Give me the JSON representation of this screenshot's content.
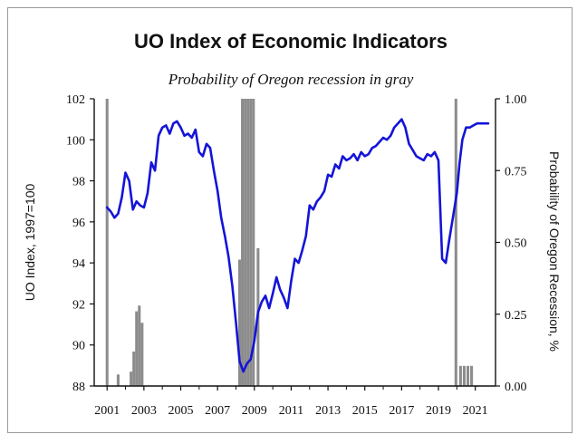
{
  "chart_data": {
    "type": "line",
    "title": "UO Index of Economic Indicators",
    "subtitle": "Probability of Oregon recession in gray",
    "ylabel": "UO Index, 1997=100",
    "ylabel_right": "Probability of Oregon Recession, %",
    "ylim": [
      88,
      102
    ],
    "ylim_right": [
      0,
      1
    ],
    "xlim": [
      2000.3,
      2022.1
    ],
    "yticks": [
      "88",
      "90",
      "92",
      "94",
      "96",
      "98",
      "100",
      "102"
    ],
    "yticks_right": [
      "0.00",
      "0.25",
      "0.50",
      "0.75",
      "1.00"
    ],
    "xticks": [
      "2001",
      "2003",
      "2005",
      "2007",
      "2009",
      "2011",
      "2013",
      "2015",
      "2017",
      "2019",
      "2021"
    ],
    "series": [
      {
        "color": "#1414d8",
        "x": [
          2001.0,
          2001.2,
          2001.4,
          2001.6,
          2001.8,
          2002.0,
          2002.2,
          2002.4,
          2002.6,
          2002.8,
          2003.0,
          2003.2,
          2003.4,
          2003.6,
          2003.8,
          2004.0,
          2004.2,
          2004.4,
          2004.6,
          2004.8,
          2005.0,
          2005.2,
          2005.4,
          2005.6,
          2005.8,
          2006.0,
          2006.2,
          2006.4,
          2006.6,
          2006.8,
          2007.0,
          2007.2,
          2007.4,
          2007.6,
          2007.8,
          2008.0,
          2008.2,
          2008.4,
          2008.6,
          2008.8,
          2009.0,
          2009.2,
          2009.4,
          2009.6,
          2009.8,
          2010.0,
          2010.2,
          2010.4,
          2010.6,
          2010.8,
          2011.0,
          2011.2,
          2011.4,
          2011.6,
          2011.8,
          2012.0,
          2012.2,
          2012.4,
          2012.6,
          2012.8,
          2013.0,
          2013.2,
          2013.4,
          2013.6,
          2013.8,
          2014.0,
          2014.2,
          2014.4,
          2014.6,
          2014.8,
          2015.0,
          2015.2,
          2015.4,
          2015.6,
          2015.8,
          2016.0,
          2016.2,
          2016.4,
          2016.6,
          2016.8,
          2017.0,
          2017.2,
          2017.4,
          2017.6,
          2017.8,
          2018.0,
          2018.2,
          2018.4,
          2018.6,
          2018.8,
          2019.0,
          2019.2,
          2019.4,
          2019.6,
          2019.8,
          2020.0,
          2020.15,
          2020.3,
          2020.5,
          2020.7,
          2020.9,
          2021.1,
          2021.3,
          2021.5,
          2021.7
        ],
        "y": [
          96.7,
          96.5,
          96.2,
          96.4,
          97.2,
          98.4,
          98.0,
          96.6,
          97.0,
          96.8,
          96.7,
          97.4,
          98.9,
          98.5,
          100.2,
          100.6,
          100.7,
          100.3,
          100.8,
          100.9,
          100.6,
          100.2,
          100.3,
          100.1,
          100.5,
          99.4,
          99.2,
          99.8,
          99.6,
          98.5,
          97.5,
          96.2,
          95.3,
          94.3,
          92.9,
          91.1,
          89.2,
          88.7,
          89.1,
          89.3,
          90.2,
          91.6,
          92.1,
          92.4,
          91.8,
          92.5,
          93.3,
          92.7,
          92.3,
          91.8,
          93.1,
          94.2,
          94.0,
          94.6,
          95.3,
          96.8,
          96.6,
          97.0,
          97.2,
          97.5,
          98.3,
          98.2,
          98.8,
          98.6,
          99.2,
          99.0,
          99.1,
          99.3,
          99.0,
          99.4,
          99.2,
          99.3,
          99.6,
          99.7,
          99.9,
          100.1,
          100.0,
          100.2,
          100.6,
          100.8,
          101.0,
          100.6,
          99.8,
          99.5,
          99.2,
          99.1,
          99.0,
          99.3,
          99.2,
          99.4,
          99.0,
          94.2,
          94.0,
          95.2,
          96.3,
          97.4,
          98.9,
          100.0,
          100.6,
          100.6,
          100.7,
          100.8,
          100.8,
          100.8,
          100.8
        ],
        "style": "line"
      }
    ],
    "probability_bars": {
      "color": "#8c8c8c",
      "x": [
        2001.0,
        2001.6,
        2002.3,
        2002.45,
        2002.6,
        2002.75,
        2002.9,
        2008.2,
        2008.35,
        2008.5,
        2008.65,
        2008.8,
        2008.95,
        2009.2,
        2019.95,
        2020.2,
        2020.4,
        2020.6,
        2020.8,
        2021.1
      ],
      "values": [
        1.0,
        0.04,
        0.05,
        0.12,
        0.26,
        0.28,
        0.22,
        0.44,
        1.0,
        1.0,
        1.0,
        1.0,
        1.0,
        0.48,
        1.0,
        0.07,
        0.07,
        0.07,
        0.07,
        0.0
      ],
      "bar_width_years": 0.15
    }
  }
}
